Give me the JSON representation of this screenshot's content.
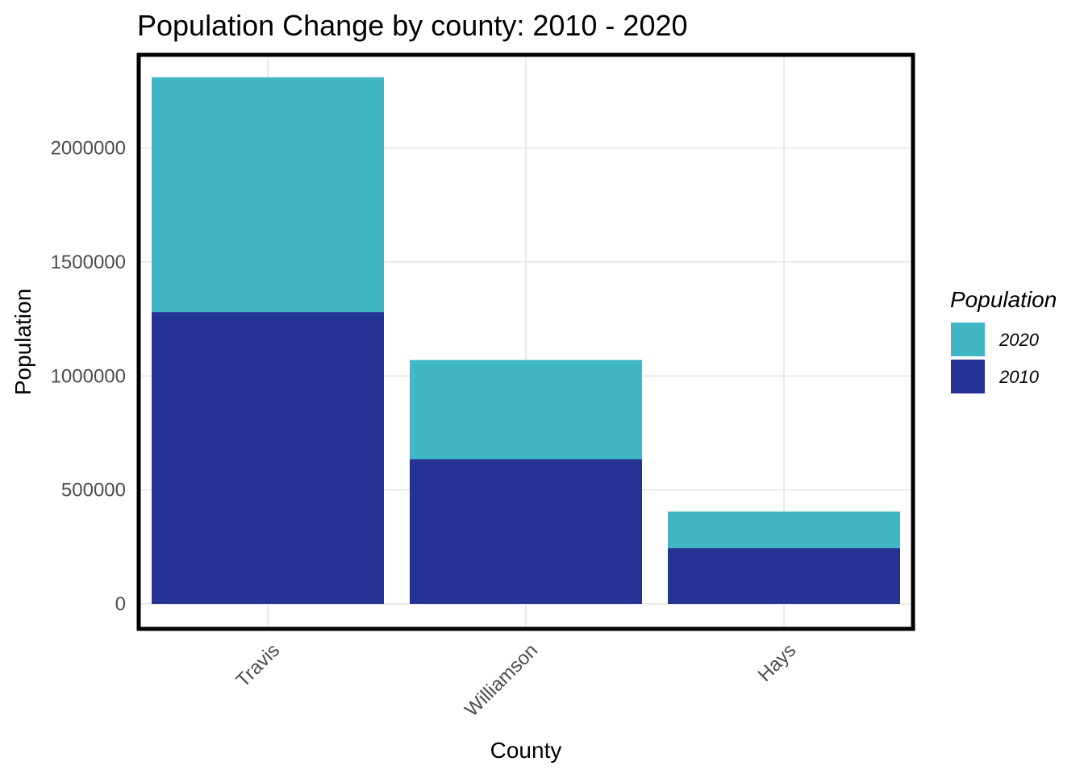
{
  "chart_data": {
    "type": "bar",
    "stacked": true,
    "title": "Population Change by county: 2010 - 2020",
    "xlabel": "County",
    "ylabel": "Population",
    "categories": [
      "Travis",
      "Williamson",
      "Hays"
    ],
    "series": [
      {
        "name": "2010",
        "values": [
          1280000,
          635000,
          245000
        ],
        "color": "#253494"
      },
      {
        "name": "2020",
        "values": [
          1030000,
          435000,
          160000
        ],
        "color": "#41b6c4"
      }
    ],
    "ylim": [
      0,
      2400000
    ],
    "yticks": [
      0,
      500000,
      1000000,
      1500000,
      2000000
    ],
    "ytick_labels": [
      "0",
      "500000",
      "1000000",
      "1500000",
      "2000000"
    ],
    "grid": true,
    "panel_border": true,
    "legend": {
      "title": "Population",
      "position": "right",
      "entries": [
        "2020",
        "2010"
      ]
    }
  }
}
